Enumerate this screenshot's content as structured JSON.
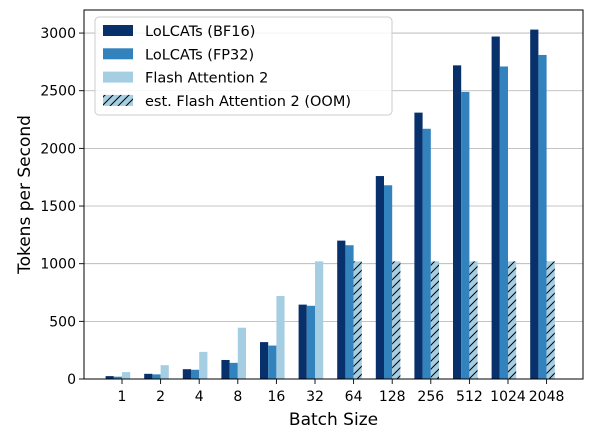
{
  "chart_data": {
    "type": "bar",
    "xlabel": "Batch Size",
    "ylabel": "Tokens per Second",
    "categories": [
      "1",
      "2",
      "4",
      "8",
      "16",
      "32",
      "64",
      "128",
      "256",
      "512",
      "1024",
      "2048"
    ],
    "ylim": [
      0,
      3200
    ],
    "yticks": [
      0,
      500,
      1000,
      1500,
      2000,
      2500,
      3000
    ],
    "grid": "horizontal",
    "legend_position": "top-left",
    "series": [
      {
        "name": "LoLCATs (BF16)",
        "color": "#08306b",
        "pattern": "solid",
        "values": [
          25,
          45,
          85,
          165,
          320,
          645,
          1200,
          1760,
          2310,
          2720,
          2970,
          3030
        ]
      },
      {
        "name": "LoLCATs (FP32)",
        "color": "#3182bd",
        "pattern": "solid",
        "values": [
          20,
          40,
          80,
          140,
          290,
          635,
          1160,
          1680,
          2170,
          2490,
          2710,
          2810
        ]
      },
      {
        "name": "Flash Attention 2",
        "color": "#a6cee3",
        "pattern": "solid",
        "values": [
          60,
          120,
          235,
          445,
          720,
          1020,
          null,
          null,
          null,
          null,
          null,
          null
        ]
      },
      {
        "name": "est. Flash Attention 2 (OOM)",
        "color": "#a6cee3",
        "pattern": "hatched",
        "values": [
          null,
          null,
          null,
          null,
          null,
          null,
          1020,
          1020,
          1020,
          1020,
          1020,
          1020
        ]
      }
    ]
  }
}
